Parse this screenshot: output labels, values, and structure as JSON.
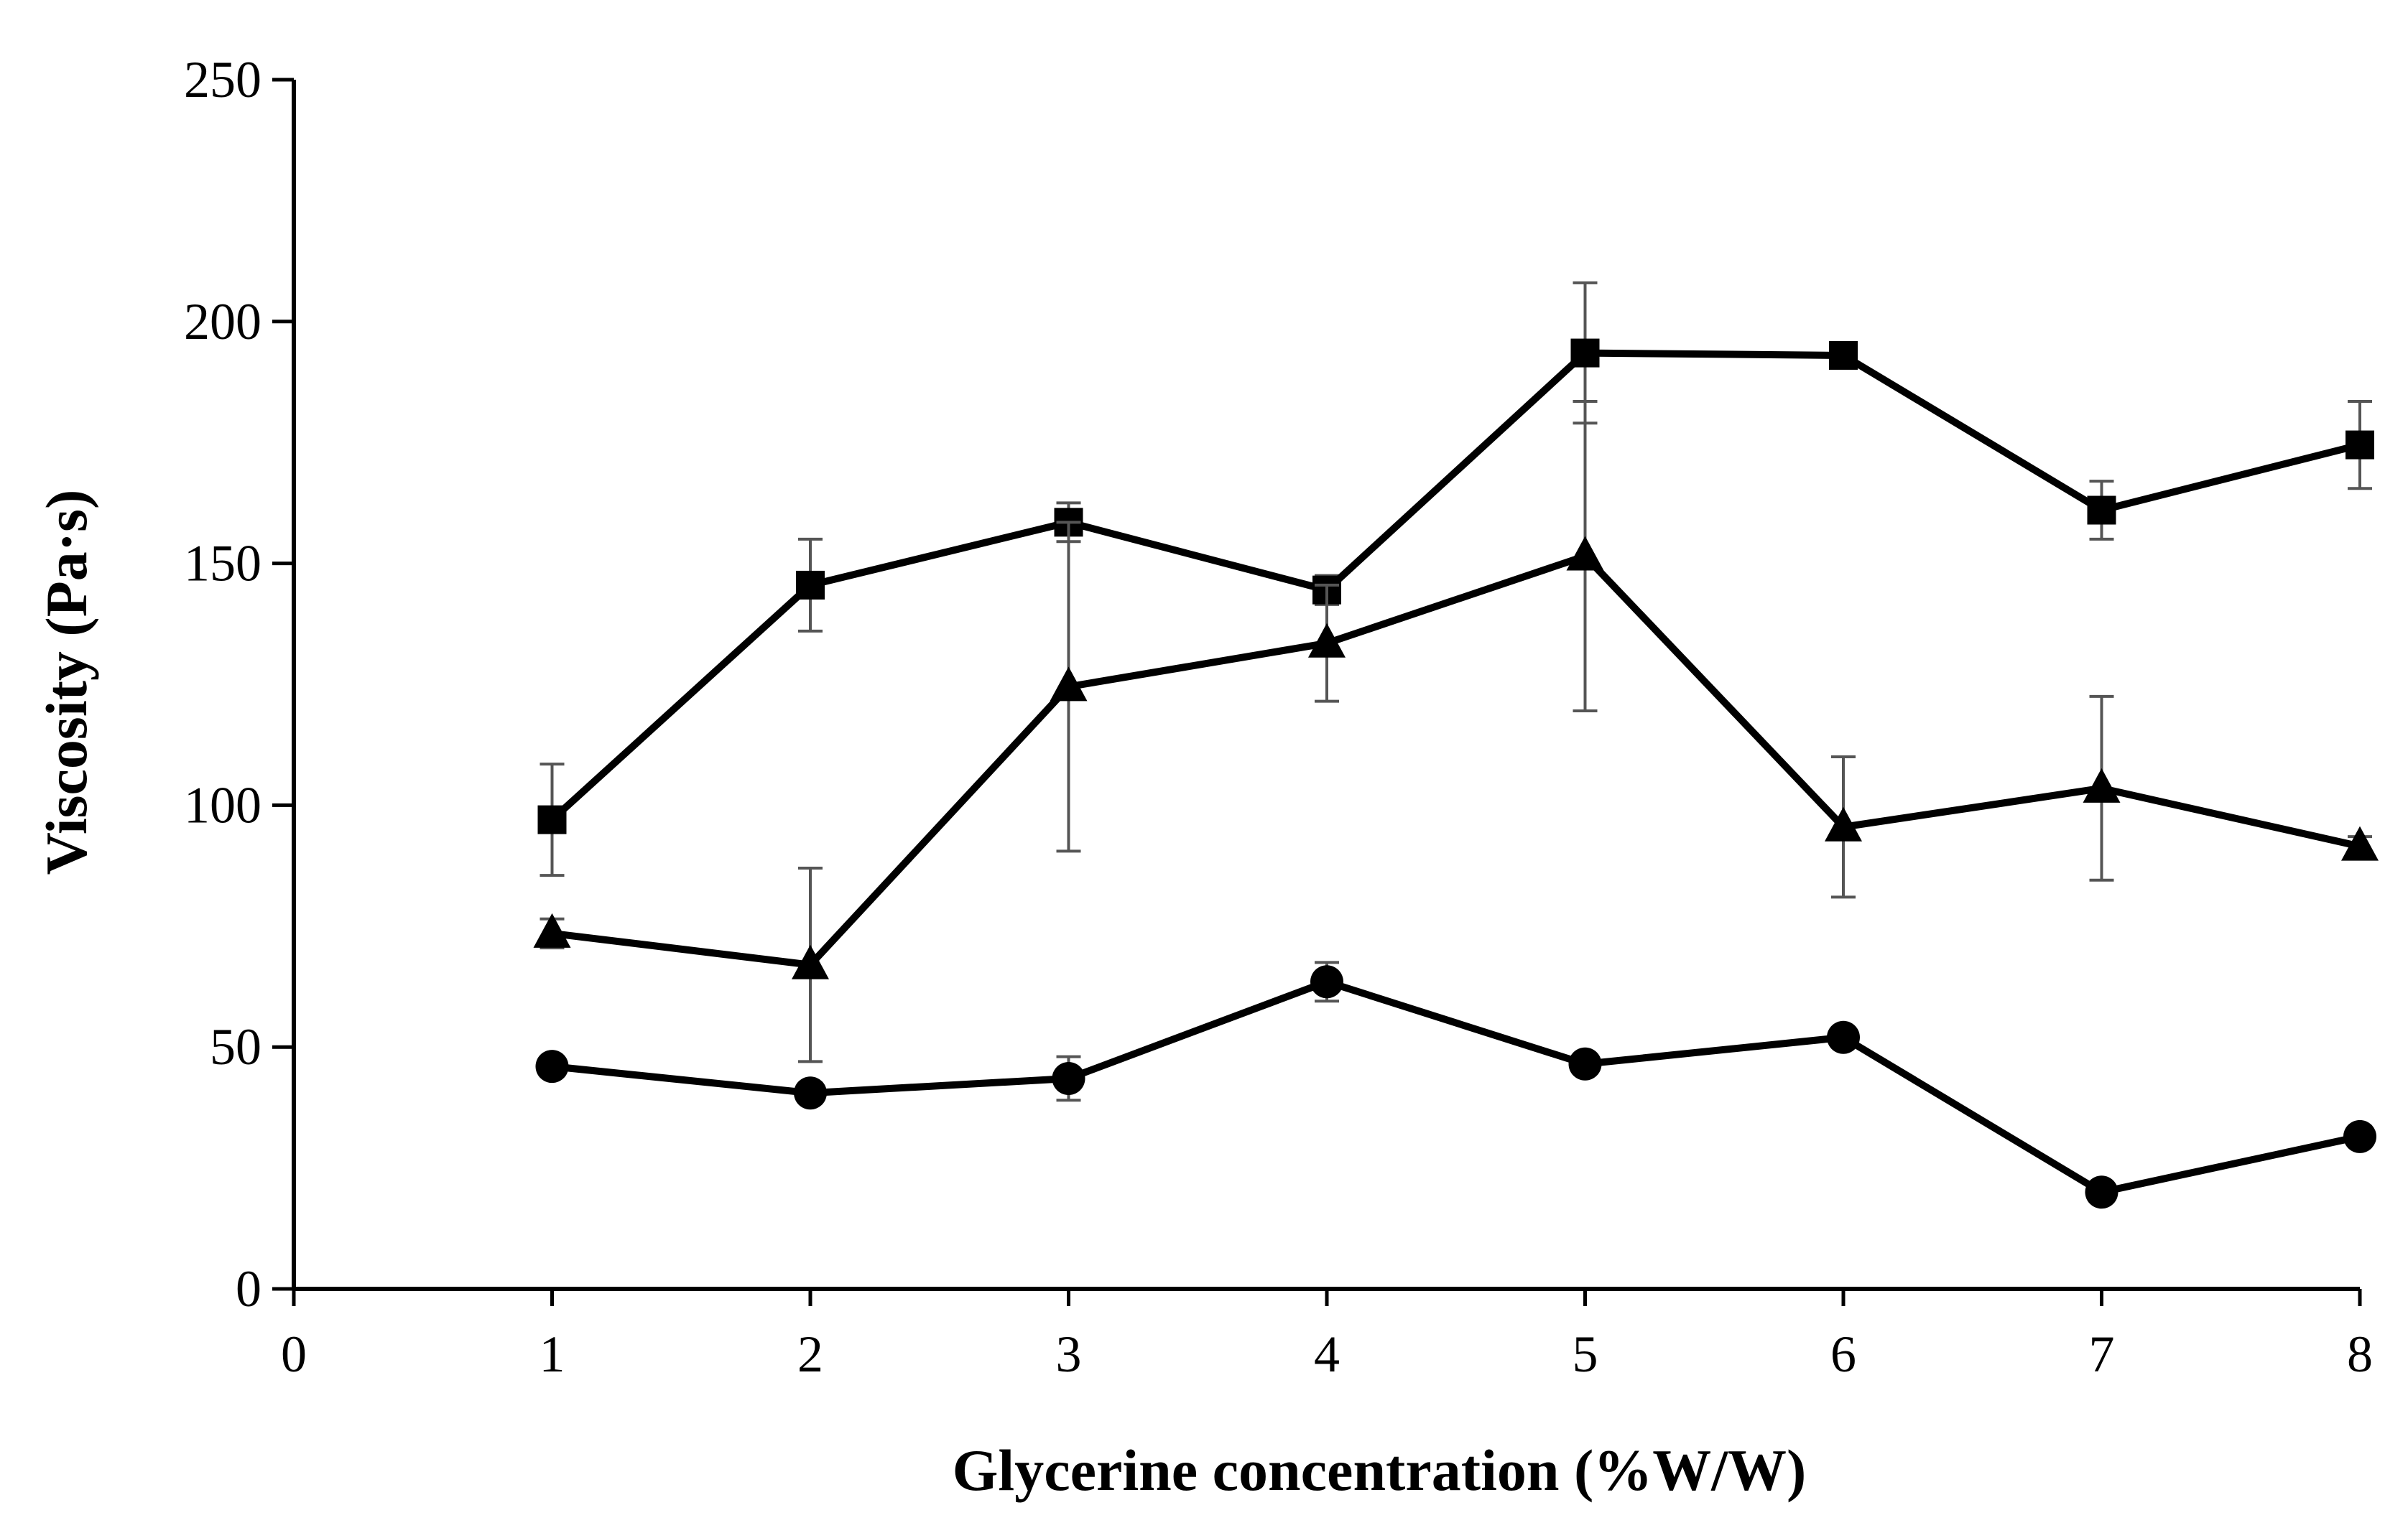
{
  "chart_data": {
    "type": "line",
    "xlabel": "Glycerine concentration (%W/W)",
    "ylabel": "Viscosity (Pa·s)",
    "xlim": [
      0,
      8
    ],
    "ylim": [
      0,
      250
    ],
    "xticks": [
      "0",
      "1",
      "2",
      "3",
      "4",
      "5",
      "6",
      "7",
      "8"
    ],
    "yticks": [
      "0",
      "50",
      "100",
      "150",
      "200",
      "250"
    ],
    "grid": false,
    "legend": "none",
    "x": [
      1,
      2,
      3,
      4,
      5,
      6,
      7,
      8
    ],
    "series": [
      {
        "name": "square",
        "marker": "square",
        "values": [
          97,
          145.5,
          158.5,
          144.5,
          193.5,
          193,
          161,
          174.5
        ],
        "errors": [
          11.5,
          9.5,
          4,
          3,
          14.5,
          2,
          6,
          9
        ]
      },
      {
        "name": "triangle",
        "marker": "triangle",
        "values": [
          73.5,
          67,
          124.5,
          133.5,
          151.5,
          95.5,
          103.5,
          91.5
        ],
        "errors": [
          3,
          20,
          34,
          12,
          32,
          14.5,
          19,
          2
        ]
      },
      {
        "name": "circle",
        "marker": "circle",
        "values": [
          46,
          40.5,
          43.5,
          63.5,
          46.5,
          52,
          20,
          31.5
        ],
        "errors": [
          1.5,
          1.5,
          4.5,
          4,
          1.5,
          2,
          1,
          1
        ]
      }
    ]
  },
  "colors": {
    "line": "#000000",
    "errorbar": "#555555"
  }
}
